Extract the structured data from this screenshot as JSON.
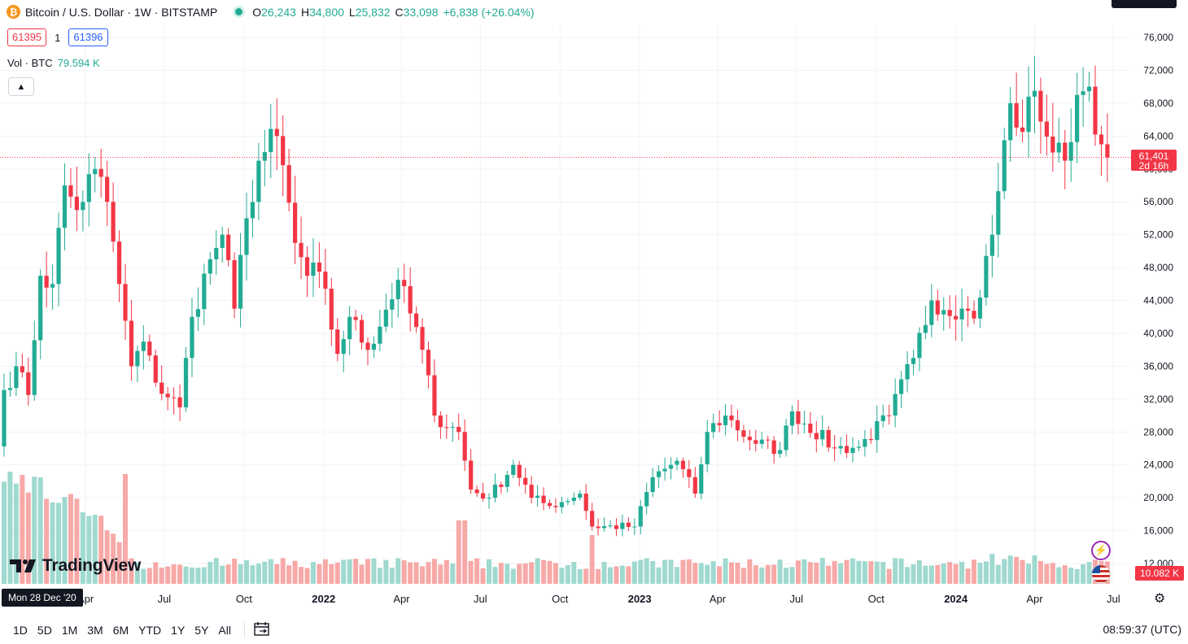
{
  "header": {
    "symbol_text": "Bitcoin / U.S. Dollar · 1W · BITSTAMP",
    "ohlc": [
      {
        "k": "O",
        "v": "26,243"
      },
      {
        "k": "H",
        "v": "34,800"
      },
      {
        "k": "L",
        "v": "25,832"
      },
      {
        "k": "C",
        "v": "33,098"
      },
      {
        "k": "",
        "v": "+6,838 (+26.04%)"
      }
    ],
    "bid": "61395",
    "spread": "1",
    "ask": "61396",
    "vol_label": "Vol · BTC",
    "vol_value": "79.594 K"
  },
  "price_badge": {
    "value": "61,401",
    "countdown": "2d 16h"
  },
  "volume_badge": "10.082 K",
  "date_tooltip": "Mon 28 Dec '20",
  "logo_text": "TradingView",
  "y_ticks": [
    "76,000",
    "72,000",
    "68,000",
    "64,000",
    "60,000",
    "56,000",
    "52,000",
    "48,000",
    "44,000",
    "40,000",
    "36,000",
    "32,000",
    "28,000",
    "24,000",
    "20,000",
    "16,000",
    "12,000"
  ],
  "x_ticks": [
    {
      "label": "Apr",
      "bold": false
    },
    {
      "label": "Jul",
      "bold": false
    },
    {
      "label": "Oct",
      "bold": false
    },
    {
      "label": "2022",
      "bold": true
    },
    {
      "label": "Apr",
      "bold": false
    },
    {
      "label": "Jul",
      "bold": false
    },
    {
      "label": "Oct",
      "bold": false
    },
    {
      "label": "2023",
      "bold": true
    },
    {
      "label": "Apr",
      "bold": false
    },
    {
      "label": "Jul",
      "bold": false
    },
    {
      "label": "Oct",
      "bold": false
    },
    {
      "label": "2024",
      "bold": true
    },
    {
      "label": "Apr",
      "bold": false
    },
    {
      "label": "Jul",
      "bold": false
    }
  ],
  "ranges": [
    "1D",
    "5D",
    "1M",
    "3M",
    "6M",
    "YTD",
    "1Y",
    "5Y",
    "All"
  ],
  "clock": "08:59:37 (UTC)",
  "colors": {
    "up": "#22ab94",
    "down": "#f23645",
    "vol_up": "#9fd9cf",
    "vol_down": "#f7a9a7",
    "grid": "#f0f3fa"
  },
  "chart_data": {
    "type": "candlestick",
    "y_range": [
      10000,
      78000
    ],
    "x_range": [
      "2020-12-28",
      "2024-06-24"
    ],
    "last_price": 61401,
    "close_anchors": [
      [
        "2020-12-28",
        33098
      ],
      [
        "2021-01-11",
        36000
      ],
      [
        "2021-01-25",
        32500
      ],
      [
        "2021-02-08",
        47000
      ],
      [
        "2021-02-22",
        46000
      ],
      [
        "2021-03-08",
        58000
      ],
      [
        "2021-03-22",
        55000
      ],
      [
        "2021-04-12",
        60000
      ],
      [
        "2021-04-26",
        56000
      ],
      [
        "2021-05-10",
        46000
      ],
      [
        "2021-05-24",
        36000
      ],
      [
        "2021-06-07",
        39000
      ],
      [
        "2021-06-21",
        34000
      ],
      [
        "2021-07-19",
        31000
      ],
      [
        "2021-08-02",
        42000
      ],
      [
        "2021-08-23",
        49000
      ],
      [
        "2021-09-06",
        52000
      ],
      [
        "2021-09-20",
        43000
      ],
      [
        "2021-10-04",
        54000
      ],
      [
        "2021-10-18",
        61000
      ],
      [
        "2021-11-08",
        64000
      ],
      [
        "2021-11-29",
        51000
      ],
      [
        "2021-12-13",
        47000
      ],
      [
        "2021-12-27",
        47500
      ],
      [
        "2022-01-17",
        37500
      ],
      [
        "2022-01-31",
        42000
      ],
      [
        "2022-02-21",
        38000
      ],
      [
        "2022-03-28",
        46500
      ],
      [
        "2022-04-25",
        38000
      ],
      [
        "2022-05-09",
        30000
      ],
      [
        "2022-06-06",
        28000
      ],
      [
        "2022-06-20",
        21000
      ],
      [
        "2022-07-11",
        20000
      ],
      [
        "2022-08-08",
        24000
      ],
      [
        "2022-08-29",
        20000
      ],
      [
        "2022-09-19",
        19000
      ],
      [
        "2022-10-24",
        20500
      ],
      [
        "2022-11-07",
        16500
      ],
      [
        "2022-12-26",
        16500
      ],
      [
        "2023-01-16",
        22500
      ],
      [
        "2023-02-13",
        24500
      ],
      [
        "2023-03-06",
        20500
      ],
      [
        "2023-03-20",
        28000
      ],
      [
        "2023-04-10",
        30000
      ],
      [
        "2023-05-08",
        27000
      ],
      [
        "2023-06-12",
        25800
      ],
      [
        "2023-06-26",
        30500
      ],
      [
        "2023-08-14",
        26000
      ],
      [
        "2023-09-11",
        26200
      ],
      [
        "2023-10-16",
        30000
      ],
      [
        "2023-11-13",
        37000
      ],
      [
        "2023-12-04",
        44000
      ],
      [
        "2024-01-08",
        43000
      ],
      [
        "2024-01-22",
        41800
      ],
      [
        "2024-02-12",
        52000
      ],
      [
        "2024-03-04",
        68000
      ],
      [
        "2024-03-18",
        64500
      ],
      [
        "2024-04-01",
        69500
      ],
      [
        "2024-04-22",
        62000
      ],
      [
        "2024-05-06",
        61000
      ],
      [
        "2024-05-20",
        69000
      ],
      [
        "2024-06-03",
        70000
      ],
      [
        "2024-06-17",
        63000
      ],
      [
        "2024-06-24",
        61401
      ]
    ]
  }
}
